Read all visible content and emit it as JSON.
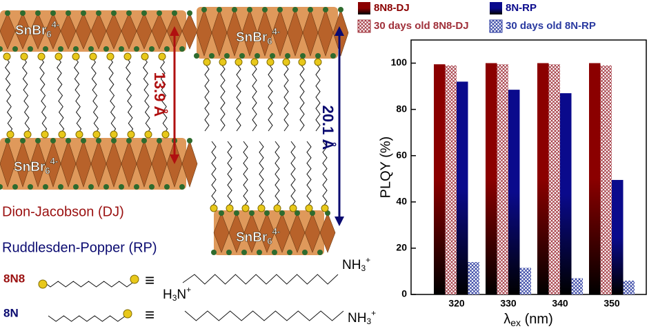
{
  "chart_data": {
    "type": "bar",
    "categories": [
      "320",
      "330",
      "340",
      "350"
    ],
    "series": [
      {
        "name": "8N8-DJ",
        "color": "#8b0000",
        "style": "gradient",
        "values": [
          99.5,
          100,
          100,
          100
        ]
      },
      {
        "name": "30 days old 8N8-DJ",
        "color": "#a0303a",
        "style": "hatch",
        "values": [
          99,
          99.5,
          99.5,
          99
        ]
      },
      {
        "name": "8N-RP",
        "color": "#0a0a8c",
        "style": "gradient",
        "values": [
          92,
          88.5,
          87,
          49.5
        ]
      },
      {
        "name": "30 days old 8N-RP",
        "color": "#2a3aa0",
        "style": "hatch",
        "values": [
          14,
          11.5,
          7,
          6
        ]
      }
    ],
    "ylabel": "PLQY (%)",
    "xlabel": {
      "symbol": "λ",
      "sub": "ex",
      "unit": " (nm)"
    },
    "ylim": [
      0,
      110
    ],
    "yticks": [
      0,
      20,
      40,
      60,
      80,
      100
    ],
    "grid": false,
    "legend": "top"
  },
  "diagram": {
    "layer": {
      "base": "SnBr",
      "sub": "6",
      "sup": "4-"
    },
    "dj_spacing": "13.9 Å",
    "rp_spacing": "20.1 Å",
    "dj_name": "Dion-Jacobson (DJ)",
    "rp_name": "Ruddlesden-Popper (RP)",
    "mol1": "8N8",
    "mol2": "8N",
    "equiv": "≡",
    "amine": {
      "base": "NH",
      "sub": "3",
      "sup": "+"
    },
    "amine_left": {
      "base": "H",
      "sub": "3",
      "rest": "N",
      "sup": "+"
    }
  }
}
